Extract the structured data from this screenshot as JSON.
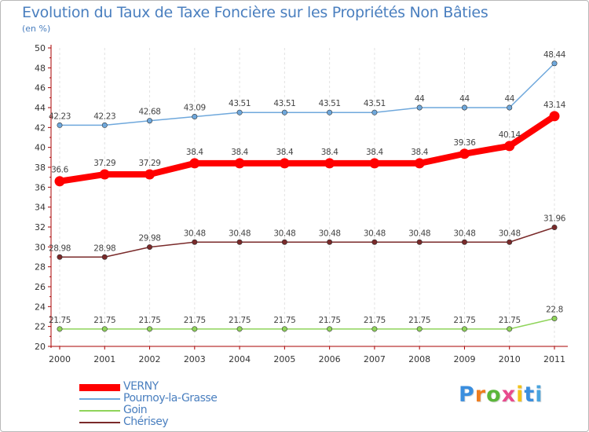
{
  "title": "Evolution du Taux de Taxe Foncière sur les Propriétés Non Bâties",
  "unit": "(en %)",
  "brand": {
    "text": "Proxiti",
    "letter_colors": [
      "#3a8ede",
      "#ef7d1f",
      "#5bb63a",
      "#e84a8d",
      "#f3c21a",
      "#3a8ede",
      "#4aa4de"
    ]
  },
  "chart_data": {
    "type": "line",
    "categories": [
      "2000",
      "2001",
      "2002",
      "2003",
      "2004",
      "2005",
      "2006",
      "2007",
      "2008",
      "2009",
      "2010",
      "2011"
    ],
    "ylim": [
      20,
      50
    ],
    "yticks": [
      20,
      22,
      24,
      26,
      28,
      30,
      32,
      34,
      36,
      38,
      40,
      42,
      44,
      46,
      48,
      50
    ],
    "grid": "vertical dashed",
    "legend": "bottom-left",
    "series": [
      {
        "name": "VERNY",
        "color": "#ff0000",
        "values": [
          36.6,
          37.29,
          37.29,
          38.4,
          38.4,
          38.4,
          38.4,
          38.4,
          38.4,
          39.36,
          40.14,
          43.14
        ],
        "labels": [
          "36.6",
          "37.29",
          "37.29",
          "38.4",
          "38.4",
          "38.4",
          "38.4",
          "38.4",
          "38.4",
          "39.36",
          "40.14",
          "43.14"
        ]
      },
      {
        "name": "Pournoy-la-Grasse",
        "color": "#6fa8dc",
        "values": [
          42.23,
          42.23,
          42.68,
          43.09,
          43.51,
          43.51,
          43.51,
          43.51,
          44,
          44,
          44,
          48.44
        ],
        "labels": [
          "42.23",
          "42.23",
          "42.68",
          "43.09",
          "43.51",
          "43.51",
          "43.51",
          "43.51",
          "44",
          "44",
          "44",
          "48.44"
        ]
      },
      {
        "name": "Goin",
        "color": "#8fd45a",
        "values": [
          21.75,
          21.75,
          21.75,
          21.75,
          21.75,
          21.75,
          21.75,
          21.75,
          21.75,
          21.75,
          21.75,
          22.8
        ],
        "labels": [
          "21.75",
          "21.75",
          "21.75",
          "21.75",
          "21.75",
          "21.75",
          "21.75",
          "21.75",
          "21.75",
          "21.75",
          "21.75",
          "22.8"
        ]
      },
      {
        "name": "Chérisey",
        "color": "#7a2a2a",
        "values": [
          28.98,
          28.98,
          29.98,
          30.48,
          30.48,
          30.48,
          30.48,
          30.48,
          30.48,
          30.48,
          30.48,
          31.96
        ],
        "labels": [
          "28.98",
          "28.98",
          "29.98",
          "30.48",
          "30.48",
          "30.48",
          "30.48",
          "30.48",
          "30.48",
          "30.48",
          "30.48",
          "31.96"
        ]
      }
    ]
  }
}
